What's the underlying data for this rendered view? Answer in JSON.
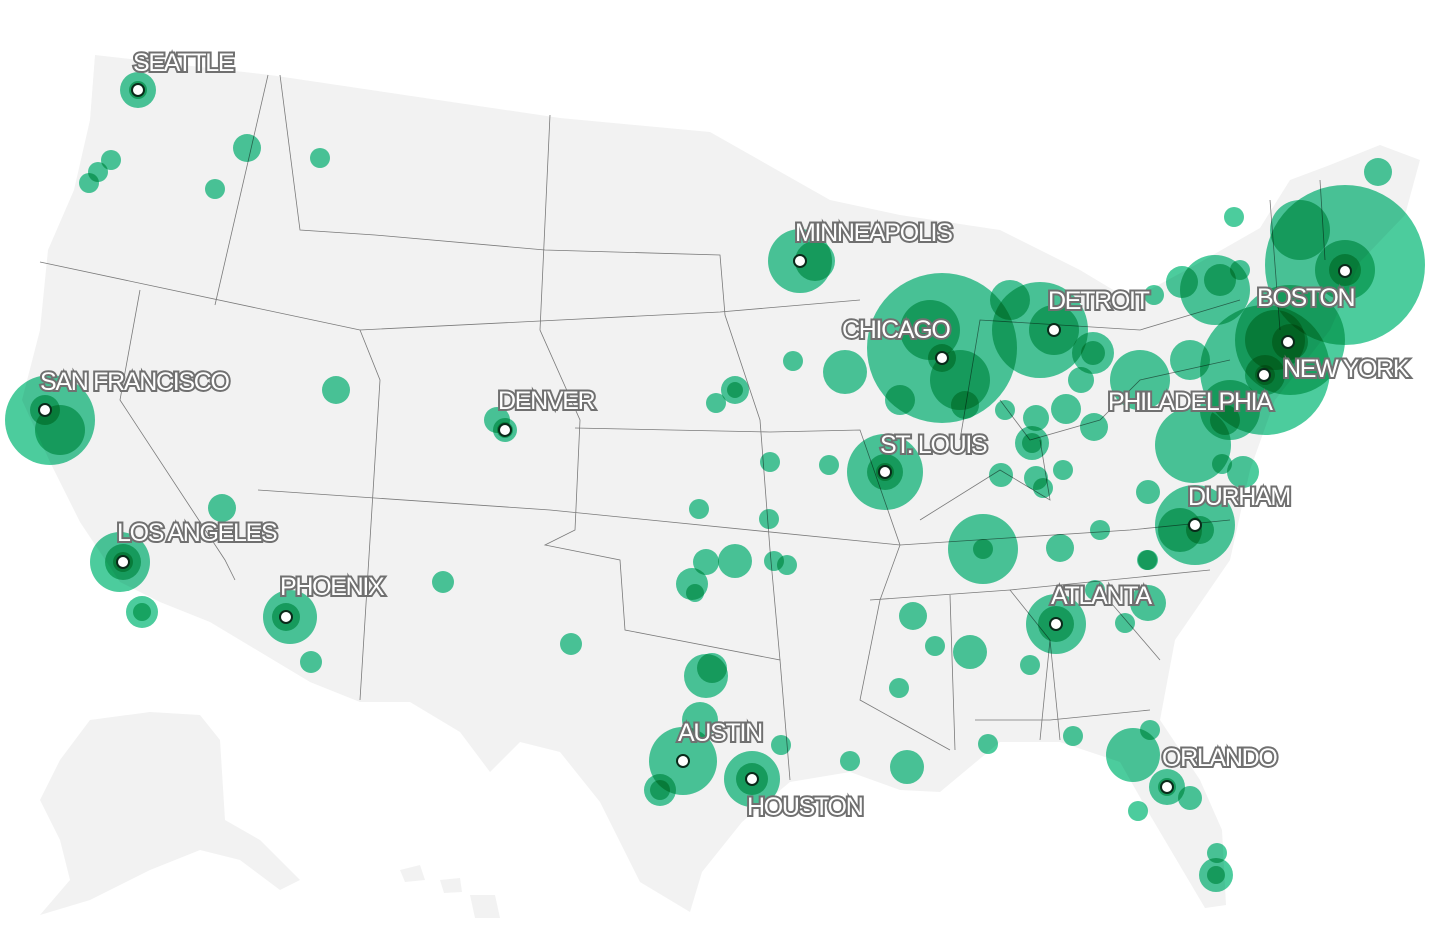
{
  "map": {
    "region": "United States",
    "bubble_color": "#1fbf84",
    "background_color": "#f2f2f2",
    "cities": [
      {
        "name": "SEATTLE"
      },
      {
        "name": "MINNEAPOLIS"
      },
      {
        "name": "CHICAGO"
      },
      {
        "name": "DETROIT"
      },
      {
        "name": "BOSTON"
      },
      {
        "name": "NEW YORK"
      },
      {
        "name": "PHILADELPHIA"
      },
      {
        "name": "DENVER"
      },
      {
        "name": "SAN FRANCISCO"
      },
      {
        "name": "LOS ANGELES"
      },
      {
        "name": "PHOENIX"
      },
      {
        "name": "ST. LOUIS"
      },
      {
        "name": "AUSTIN"
      },
      {
        "name": "HOUSTON"
      },
      {
        "name": "ATLANTA"
      },
      {
        "name": "DURHAM"
      },
      {
        "name": "ORLANDO"
      }
    ]
  }
}
